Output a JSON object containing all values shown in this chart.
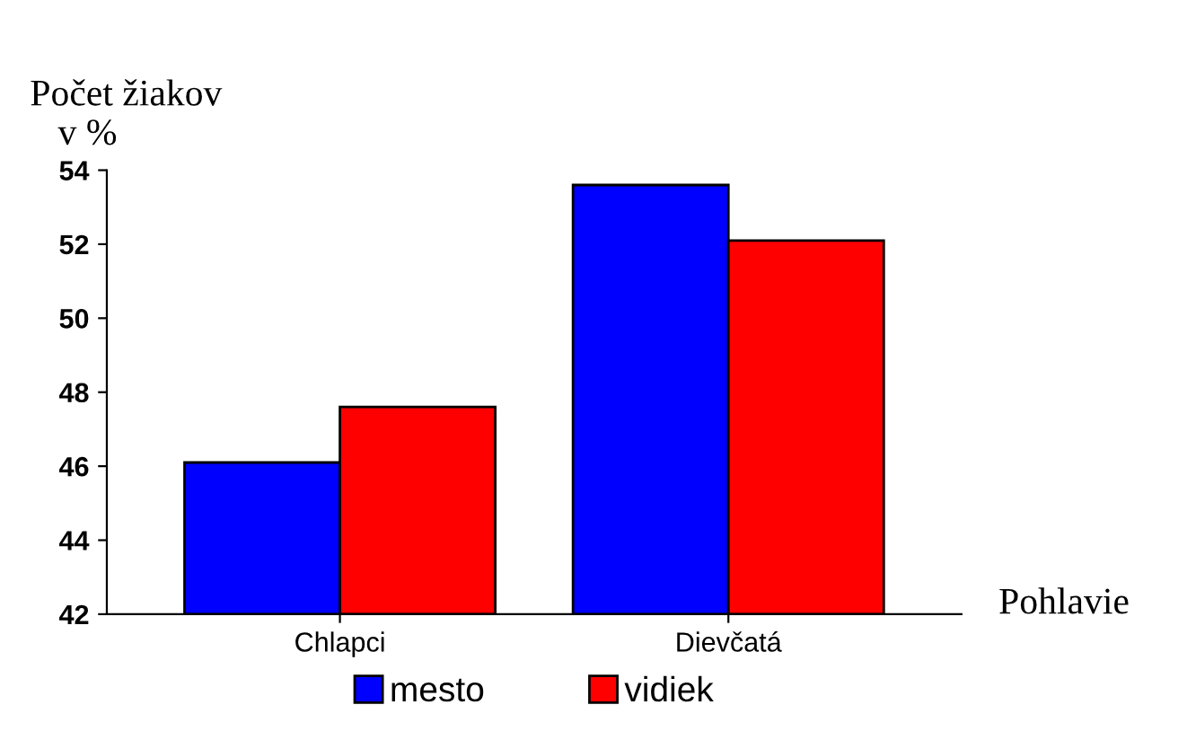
{
  "chart_data": {
    "type": "bar",
    "ylabel": "Počet žiakov\n   v %",
    "xlabel": "Pohlavie",
    "categories": [
      "Chlapci",
      "Dievčatá"
    ],
    "series": [
      {
        "name": "mesto",
        "color": "#0000ff",
        "values": [
          46.1,
          53.6
        ]
      },
      {
        "name": "vidiek",
        "color": "#ff0000",
        "values": [
          47.6,
          52.1
        ]
      }
    ],
    "ylim": [
      42,
      54
    ],
    "yticks": [
      42,
      44,
      46,
      48,
      50,
      52,
      54
    ],
    "grid": false,
    "legend": "bottom"
  }
}
